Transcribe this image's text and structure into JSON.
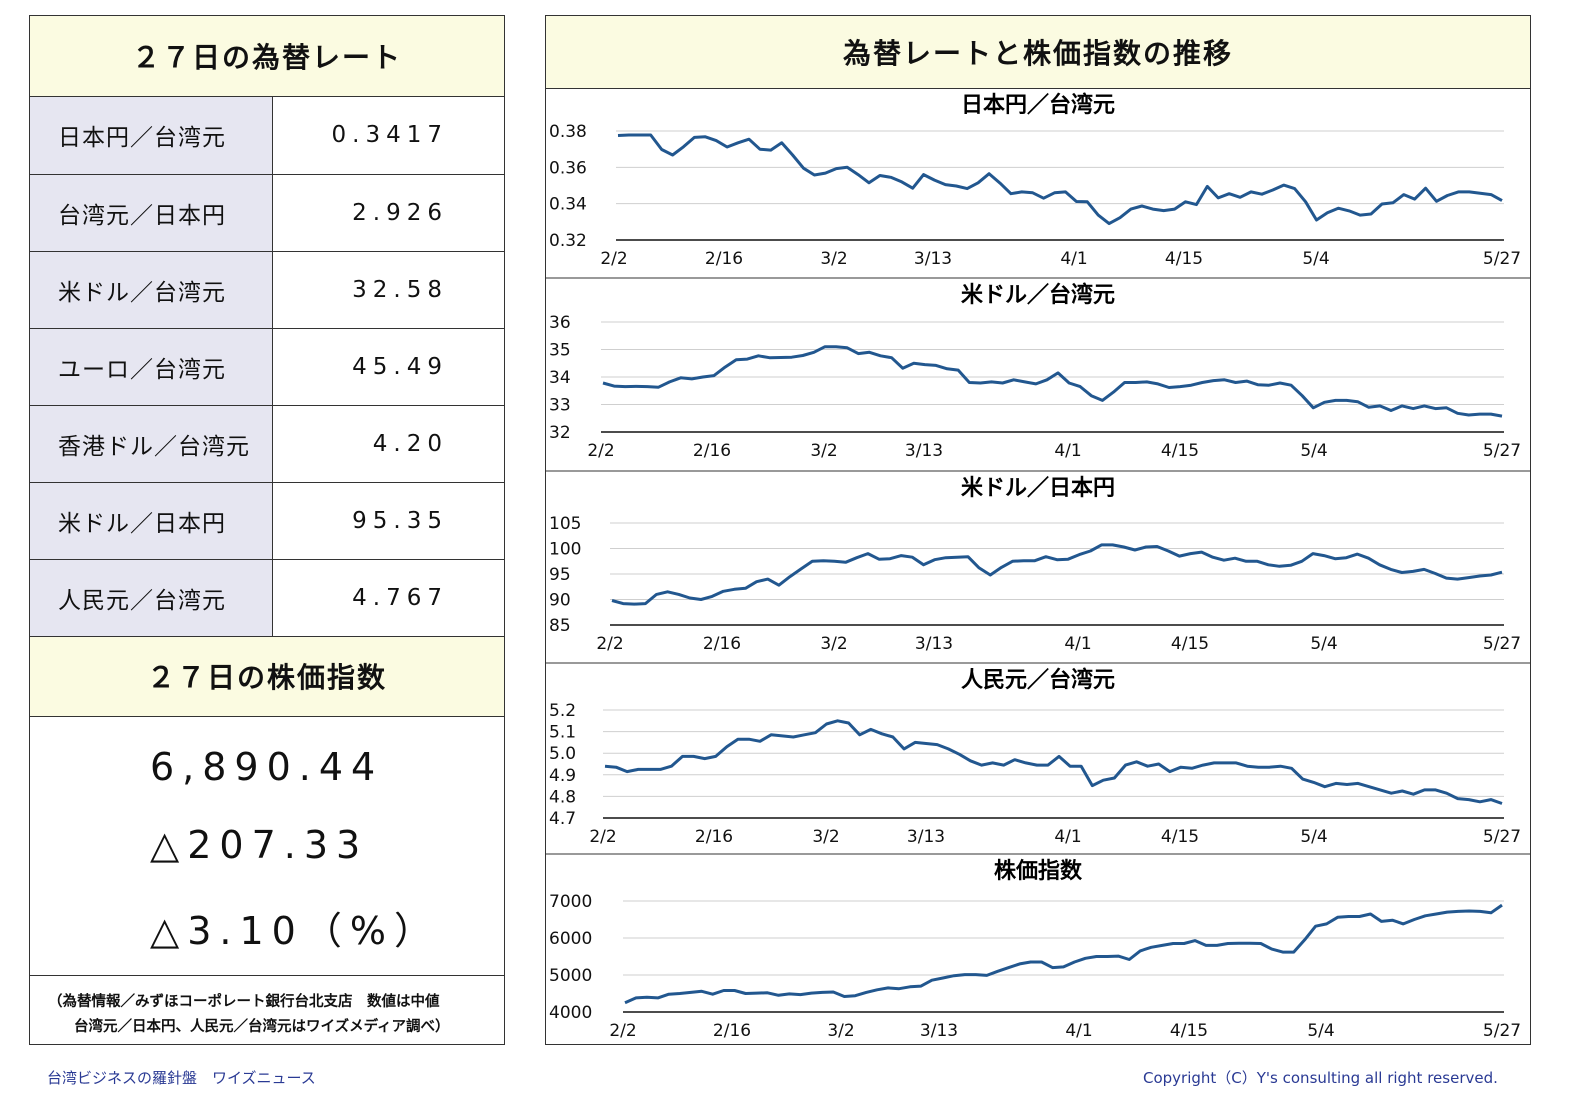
{
  "left": {
    "rates_title": "２７日の為替レート",
    "rates": [
      {
        "label": "日本円／台湾元",
        "value": "0.3417"
      },
      {
        "label": "台湾元／日本円",
        "value": "2.926"
      },
      {
        "label": "米ドル／台湾元",
        "value": "32.58"
      },
      {
        "label": "ユーロ／台湾元",
        "value": "45.49"
      },
      {
        "label": "香港ドル／台湾元",
        "value": "4.20"
      },
      {
        "label": "米ドル／日本円",
        "value": "95.35"
      },
      {
        "label": "人民元／台湾元",
        "value": "4.767"
      }
    ],
    "stock_title": "２７日の株価指数",
    "stock_index": "6,890.44",
    "stock_change": "△207.33",
    "stock_change_pct": "△3.10（%）",
    "note_line1": "（為替情報／みずほコーポレート銀行台北支店　数値は中値",
    "note_line2": "台湾元／日本円、人民元／台湾元はワイズメディア調べ）"
  },
  "right": {
    "title": "為替レートと株価指数の推移"
  },
  "footer": {
    "left": "台湾ビジネスの羅針盤　ワイズニュース",
    "right": "Copyright（C）Y's consulting all right reserved."
  },
  "colors": {
    "line": "#22578f",
    "header_bg": "#fbfbe1",
    "label_bg": "#e6e6f1",
    "footer_text": "#2a3a94"
  },
  "chart_data": [
    {
      "type": "line",
      "title": "日本円／台湾元",
      "x_labels": [
        "2/2",
        "2/16",
        "3/2",
        "3/13",
        "4/1",
        "4/15",
        "5/4",
        "5/27"
      ],
      "y_ticks": [
        "0.38",
        "0.36",
        "0.34",
        "0.32"
      ],
      "ylim": [
        0.32,
        0.38
      ],
      "values": [
        0.3775,
        0.3778,
        0.3778,
        0.3778,
        0.3698,
        0.3668,
        0.3713,
        0.3765,
        0.3768,
        0.3747,
        0.3712,
        0.3735,
        0.3755,
        0.37,
        0.3695,
        0.3735,
        0.3668,
        0.3595,
        0.3558,
        0.3568,
        0.3593,
        0.36,
        0.356,
        0.3515,
        0.3555,
        0.3545,
        0.352,
        0.3485,
        0.356,
        0.353,
        0.3505,
        0.3497,
        0.3483,
        0.3515,
        0.3565,
        0.3513,
        0.3455,
        0.3465,
        0.346,
        0.343,
        0.346,
        0.3465,
        0.3412,
        0.341,
        0.3337,
        0.329,
        0.3323,
        0.337,
        0.3387,
        0.337,
        0.3362,
        0.337,
        0.341,
        0.3395,
        0.3495,
        0.3432,
        0.3455,
        0.3435,
        0.3465,
        0.3452,
        0.3475,
        0.3502,
        0.3483,
        0.341,
        0.331,
        0.335,
        0.3375,
        0.336,
        0.3337,
        0.3343,
        0.3398,
        0.3405,
        0.345,
        0.3425,
        0.3485,
        0.3413,
        0.3445,
        0.3465,
        0.3465,
        0.3457,
        0.345,
        0.3417
      ]
    },
    {
      "type": "line",
      "title": "米ドル／台湾元",
      "x_labels": [
        "2/2",
        "2/16",
        "3/2",
        "3/13",
        "4/1",
        "4/15",
        "5/4",
        "5/27"
      ],
      "y_ticks": [
        "36",
        "35",
        "34",
        "33",
        "32"
      ],
      "ylim": [
        32,
        36
      ],
      "values": [
        33.78,
        33.67,
        33.65,
        33.66,
        33.65,
        33.63,
        33.82,
        33.97,
        33.93,
        34.0,
        34.05,
        34.36,
        34.63,
        34.65,
        34.77,
        34.7,
        34.71,
        34.72,
        34.78,
        34.9,
        35.1,
        35.1,
        35.06,
        34.85,
        34.9,
        34.77,
        34.7,
        34.32,
        34.5,
        34.45,
        34.42,
        34.3,
        34.25,
        33.8,
        33.78,
        33.82,
        33.78,
        33.9,
        33.82,
        33.75,
        33.9,
        34.15,
        33.78,
        33.65,
        33.32,
        33.15,
        33.45,
        33.8,
        33.8,
        33.82,
        33.75,
        33.62,
        33.65,
        33.7,
        33.8,
        33.87,
        33.9,
        33.8,
        33.85,
        33.72,
        33.7,
        33.78,
        33.7,
        33.32,
        32.88,
        33.08,
        33.15,
        33.15,
        33.1,
        32.9,
        32.95,
        32.78,
        32.95,
        32.85,
        32.95,
        32.85,
        32.88,
        32.68,
        32.62,
        32.65,
        32.65,
        32.58
      ]
    },
    {
      "type": "line",
      "title": "米ドル／日本円",
      "x_labels": [
        "2/2",
        "2/16",
        "3/2",
        "3/13",
        "4/1",
        "4/15",
        "5/4",
        "5/27"
      ],
      "y_ticks": [
        "105",
        "100",
        "95",
        "90",
        "85"
      ],
      "ylim": [
        85,
        105
      ],
      "values": [
        89.8,
        89.2,
        89.1,
        89.2,
        91.0,
        91.5,
        91.0,
        90.3,
        90.0,
        90.6,
        91.6,
        92.0,
        92.2,
        93.5,
        94.0,
        92.8,
        94.5,
        96.0,
        97.5,
        97.6,
        97.5,
        97.3,
        98.2,
        99.0,
        97.9,
        98.0,
        98.6,
        98.3,
        96.8,
        97.8,
        98.2,
        98.3,
        98.4,
        96.2,
        94.8,
        96.3,
        97.5,
        97.6,
        97.6,
        98.4,
        97.8,
        97.9,
        98.8,
        99.5,
        100.7,
        100.7,
        100.3,
        99.7,
        100.3,
        100.4,
        99.5,
        98.5,
        99.0,
        99.3,
        98.3,
        97.7,
        98.1,
        97.5,
        97.5,
        96.8,
        96.5,
        96.7,
        97.5,
        99.0,
        98.6,
        98.0,
        98.2,
        98.9,
        98.1,
        96.8,
        95.9,
        95.3,
        95.5,
        95.9,
        95.1,
        94.2,
        94.0,
        94.3,
        94.6,
        94.8,
        95.35
      ]
    },
    {
      "type": "line",
      "title": "人民元／台湾元",
      "x_labels": [
        "2/2",
        "2/16",
        "3/2",
        "3/13",
        "4/1",
        "4/15",
        "5/4",
        "5/27"
      ],
      "y_ticks": [
        "5.2",
        "5.1",
        "5.0",
        "4.9",
        "4.8",
        "4.7"
      ],
      "ylim": [
        4.7,
        5.2
      ],
      "values": [
        4.94,
        4.935,
        4.915,
        4.925,
        4.925,
        4.925,
        4.94,
        4.985,
        4.985,
        4.975,
        4.985,
        5.03,
        5.065,
        5.065,
        5.055,
        5.085,
        5.08,
        5.075,
        5.085,
        5.095,
        5.135,
        5.15,
        5.14,
        5.085,
        5.11,
        5.09,
        5.075,
        5.02,
        5.05,
        5.045,
        5.04,
        5.02,
        4.995,
        4.965,
        4.945,
        4.955,
        4.945,
        4.97,
        4.955,
        4.945,
        4.945,
        4.985,
        4.94,
        4.94,
        4.85,
        4.875,
        4.885,
        4.945,
        4.96,
        4.94,
        4.95,
        4.915,
        4.935,
        4.93,
        4.945,
        4.955,
        4.955,
        4.955,
        4.94,
        4.935,
        4.935,
        4.94,
        4.93,
        4.88,
        4.865,
        4.845,
        4.86,
        4.855,
        4.86,
        4.845,
        4.83,
        4.815,
        4.825,
        4.81,
        4.83,
        4.83,
        4.815,
        4.79,
        4.785,
        4.775,
        4.785,
        4.767
      ]
    },
    {
      "type": "line",
      "title": "株価指数",
      "x_labels": [
        "2/2",
        "2/16",
        "3/2",
        "3/13",
        "4/1",
        "4/15",
        "5/4",
        "5/27"
      ],
      "y_ticks": [
        "7000",
        "6000",
        "5000",
        "4000"
      ],
      "ylim": [
        4000,
        7000
      ],
      "values": [
        4250,
        4380,
        4400,
        4380,
        4480,
        4500,
        4530,
        4560,
        4480,
        4580,
        4580,
        4500,
        4510,
        4520,
        4450,
        4490,
        4470,
        4510,
        4530,
        4540,
        4420,
        4440,
        4530,
        4600,
        4650,
        4630,
        4680,
        4700,
        4860,
        4920,
        4980,
        5010,
        5010,
        4990,
        5100,
        5200,
        5300,
        5350,
        5350,
        5200,
        5220,
        5350,
        5450,
        5500,
        5500,
        5510,
        5420,
        5650,
        5750,
        5800,
        5850,
        5850,
        5930,
        5800,
        5800,
        5850,
        5860,
        5860,
        5850,
        5700,
        5620,
        5620,
        5950,
        6320,
        6380,
        6560,
        6580,
        6580,
        6650,
        6450,
        6480,
        6380,
        6500,
        6600,
        6650,
        6700,
        6720,
        6730,
        6720,
        6680,
        6890.44
      ]
    }
  ]
}
